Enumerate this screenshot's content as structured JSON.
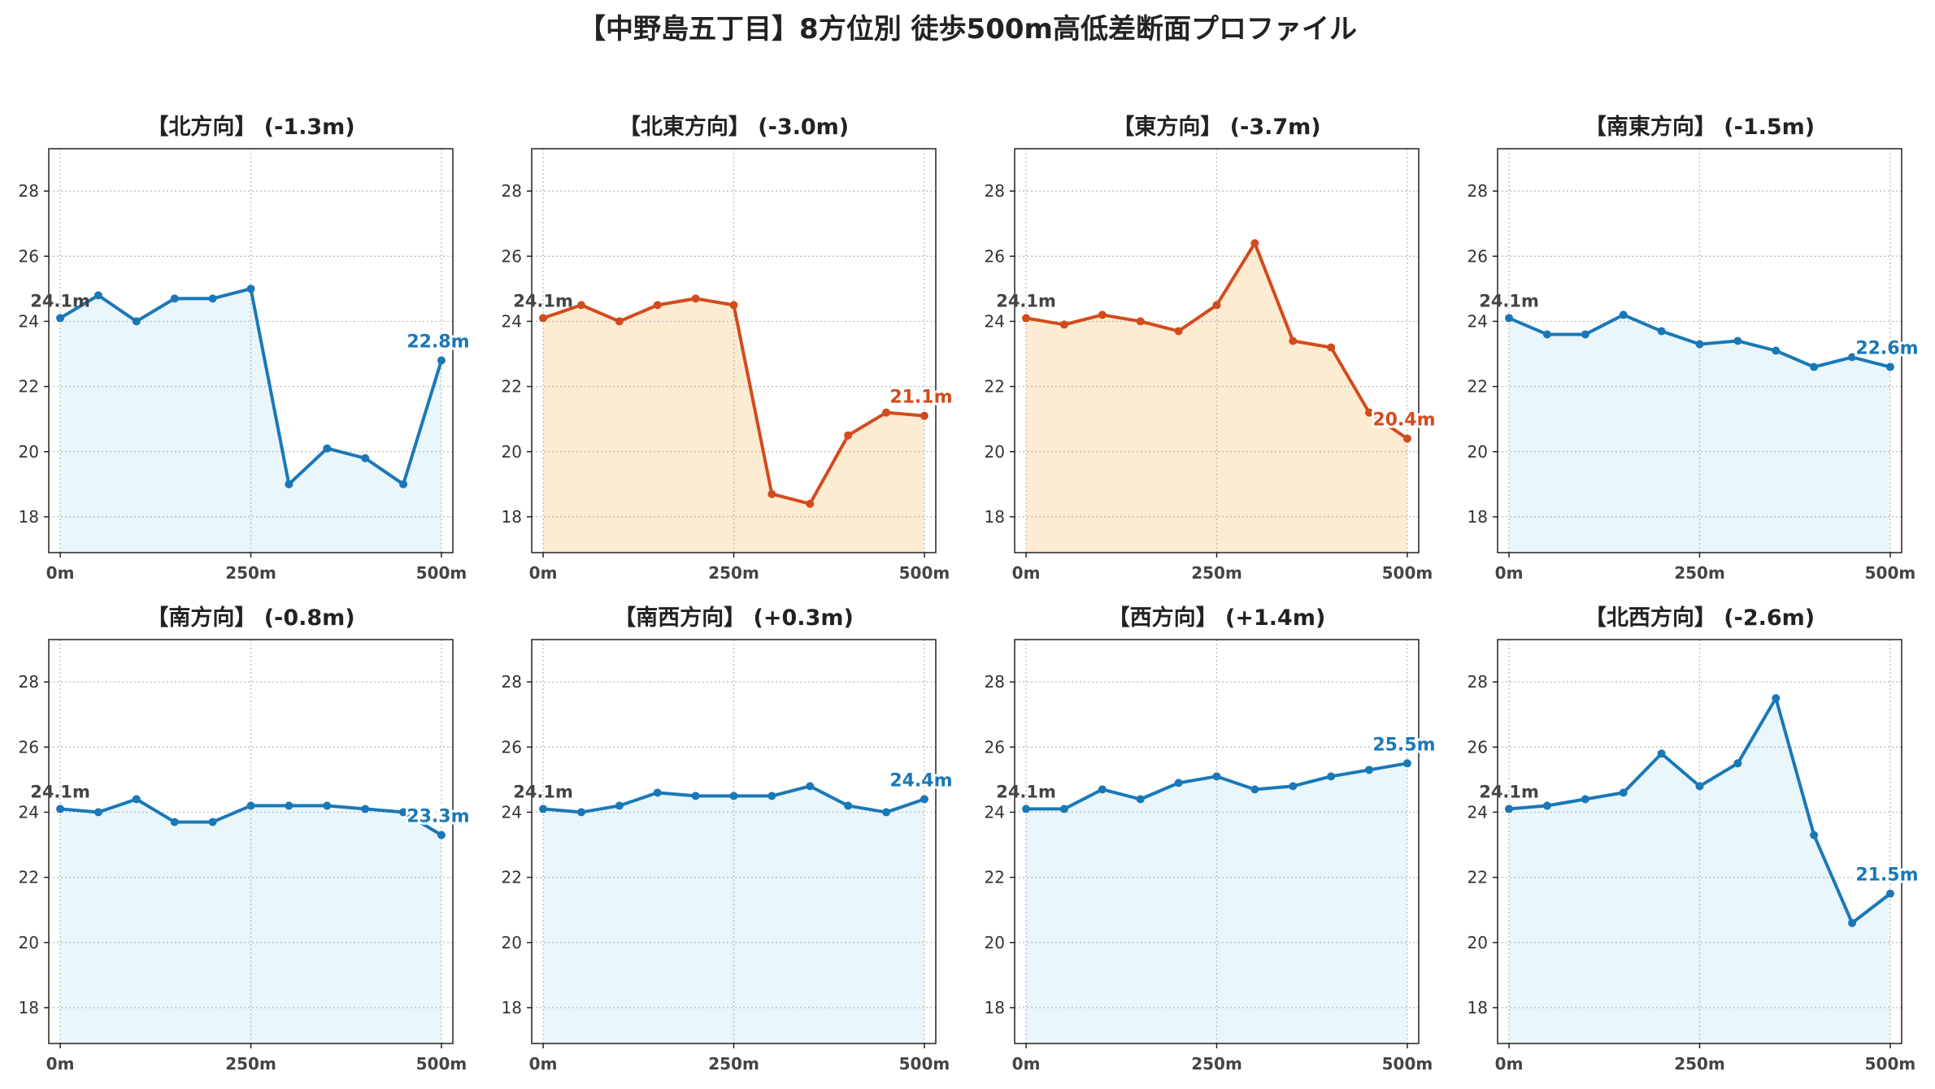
{
  "title": "【中野島五丁目】8方位別 徒歩500m高低差断面プロファイル",
  "colors": {
    "up": "#1a78b7",
    "up_fill": "#e9f6fb",
    "down": "#d44a1c",
    "down_fill": "#fdebd2"
  },
  "chart_data": [
    {
      "type": "area",
      "title": "【北方向】 (-1.3m)",
      "trend": "up",
      "x": [
        0,
        50,
        100,
        150,
        200,
        250,
        300,
        350,
        400,
        450,
        500
      ],
      "y": [
        24.1,
        24.8,
        24.0,
        24.7,
        24.7,
        25.0,
        19.0,
        20.1,
        19.8,
        19.0,
        22.8
      ],
      "start_label": "24.1m",
      "end_label": "22.8m"
    },
    {
      "type": "area",
      "title": "【北東方向】 (-3.0m)",
      "trend": "down",
      "x": [
        0,
        50,
        100,
        150,
        200,
        250,
        300,
        350,
        400,
        450,
        500
      ],
      "y": [
        24.1,
        24.5,
        24.0,
        24.5,
        24.7,
        24.5,
        18.7,
        18.4,
        20.5,
        21.2,
        21.1
      ],
      "start_label": "24.1m",
      "end_label": "21.1m"
    },
    {
      "type": "area",
      "title": "【東方向】 (-3.7m)",
      "trend": "down",
      "x": [
        0,
        50,
        100,
        150,
        200,
        250,
        300,
        350,
        400,
        450,
        500
      ],
      "y": [
        24.1,
        23.9,
        24.2,
        24.0,
        23.7,
        24.5,
        26.4,
        23.4,
        23.2,
        21.2,
        20.4
      ],
      "start_label": "24.1m",
      "end_label": "20.4m"
    },
    {
      "type": "area",
      "title": "【南東方向】 (-1.5m)",
      "trend": "up",
      "x": [
        0,
        50,
        100,
        150,
        200,
        250,
        300,
        350,
        400,
        450,
        500
      ],
      "y": [
        24.1,
        23.6,
        23.6,
        24.2,
        23.7,
        23.3,
        23.4,
        23.1,
        22.6,
        22.9,
        22.6
      ],
      "start_label": "24.1m",
      "end_label": "22.6m"
    },
    {
      "type": "area",
      "title": "【南方向】 (-0.8m)",
      "trend": "up",
      "x": [
        0,
        50,
        100,
        150,
        200,
        250,
        300,
        350,
        400,
        450,
        500
      ],
      "y": [
        24.1,
        24.0,
        24.4,
        23.7,
        23.7,
        24.2,
        24.2,
        24.2,
        24.1,
        24.0,
        23.3
      ],
      "start_label": "24.1m",
      "end_label": "23.3m"
    },
    {
      "type": "area",
      "title": "【南西方向】 (+0.3m)",
      "trend": "up",
      "x": [
        0,
        50,
        100,
        150,
        200,
        250,
        300,
        350,
        400,
        450,
        500
      ],
      "y": [
        24.1,
        24.0,
        24.2,
        24.6,
        24.5,
        24.5,
        24.5,
        24.8,
        24.2,
        24.0,
        24.4
      ],
      "start_label": "24.1m",
      "end_label": "24.4m"
    },
    {
      "type": "area",
      "title": "【西方向】 (+1.4m)",
      "trend": "up",
      "x": [
        0,
        50,
        100,
        150,
        200,
        250,
        300,
        350,
        400,
        450,
        500
      ],
      "y": [
        24.1,
        24.1,
        24.7,
        24.4,
        24.9,
        25.1,
        24.7,
        24.8,
        25.1,
        25.3,
        25.5
      ],
      "start_label": "24.1m",
      "end_label": "25.5m"
    },
    {
      "type": "area",
      "title": "【北西方向】 (-2.6m)",
      "trend": "up",
      "x": [
        0,
        50,
        100,
        150,
        200,
        250,
        300,
        350,
        400,
        450,
        500
      ],
      "y": [
        24.1,
        24.2,
        24.4,
        24.6,
        25.8,
        24.8,
        25.5,
        27.5,
        23.3,
        20.6,
        21.5
      ],
      "start_label": "24.1m",
      "end_label": "21.5m"
    }
  ],
  "axes": {
    "ylim": [
      16.9,
      29.3
    ],
    "yticks": [
      18,
      20,
      22,
      24,
      26,
      28
    ],
    "xlim": [
      -15,
      515
    ],
    "xticks": [
      0,
      250,
      500
    ],
    "xtick_labels": [
      "0m",
      "250m",
      "500m"
    ],
    "grid": true
  }
}
